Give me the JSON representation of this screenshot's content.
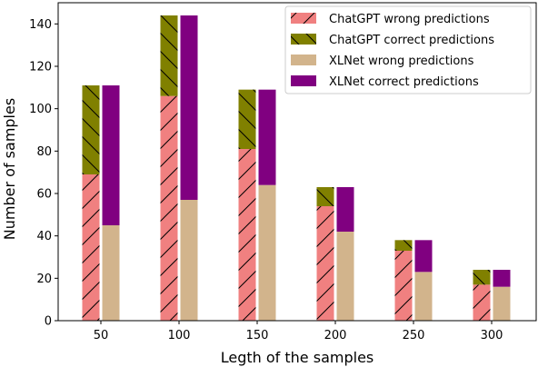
{
  "chart_data": {
    "type": "bar",
    "title": "",
    "xlabel": "Legth of the samples",
    "ylabel": "Number of samples",
    "categories": [
      "50",
      "100",
      "150",
      "200",
      "250",
      "300"
    ],
    "ylim": [
      0,
      150
    ],
    "yticks": [
      0,
      20,
      40,
      60,
      80,
      100,
      120,
      140
    ],
    "grid": false,
    "legend_position": "top-right",
    "groups": [
      {
        "model": "ChatGPT",
        "stacked": [
          {
            "name": "ChatGPT wrong predictions",
            "values": [
              69,
              106,
              81,
              54,
              33,
              17
            ],
            "color": "#f08080",
            "hatch": "forward-slash"
          },
          {
            "name": "ChatGPT correct predictions",
            "values": [
              42,
              38,
              28,
              9,
              5,
              7
            ],
            "color": "#808000",
            "hatch": "back-slash"
          }
        ]
      },
      {
        "model": "XLNet",
        "stacked": [
          {
            "name": "XLNet wrong predictions",
            "values": [
              45,
              57,
              64,
              42,
              23,
              16
            ],
            "color": "#d2b48c",
            "hatch": "none"
          },
          {
            "name": "XLNet correct predictions",
            "values": [
              66,
              87,
              45,
              21,
              15,
              8
            ],
            "color": "#800080",
            "hatch": "none"
          }
        ]
      }
    ]
  }
}
